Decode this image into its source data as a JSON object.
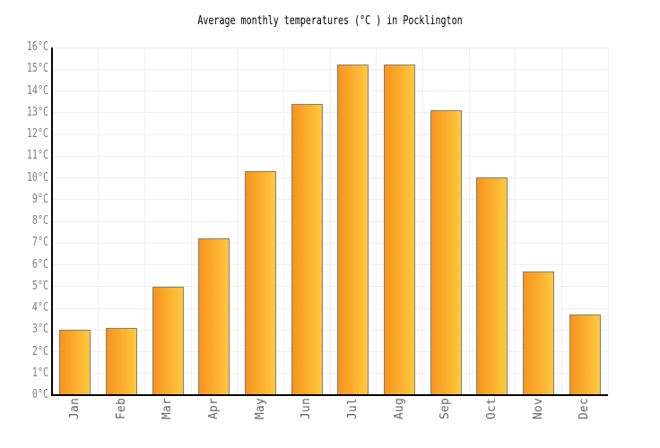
{
  "title": "Average monthly temperatures (°C ) in Pocklington",
  "chart_data": {
    "type": "bar",
    "title": "Average monthly temperatures (°C ) in Pocklington",
    "categories": [
      "Jan",
      "Feb",
      "Mar",
      "Apr",
      "May",
      "Jun",
      "Jul",
      "Aug",
      "Sep",
      "Oct",
      "Nov",
      "Dec"
    ],
    "values": [
      3.0,
      3.1,
      5.0,
      7.2,
      10.3,
      13.4,
      15.2,
      15.2,
      13.1,
      10.0,
      5.7,
      3.7
    ],
    "unit": "°C",
    "ylim": [
      0,
      16
    ],
    "ytick_step": 1,
    "ytick_labels": [
      "0°C",
      "1°C",
      "2°C",
      "3°C",
      "4°C",
      "5°C",
      "6°C",
      "7°C",
      "8°C",
      "9°C",
      "10°C",
      "11°C",
      "12°C",
      "13°C",
      "14°C",
      "15°C",
      "16°C"
    ],
    "grid": true,
    "legend": null,
    "colors": {
      "bar_gradient_left": "#f8931d",
      "bar_gradient_right": "#ffc93f",
      "bar_border": "#7f7f7f",
      "grid_line": "#efefef",
      "axis_line": "#000000",
      "y_label": "#7d7d7d",
      "x_label": "#666666",
      "title": "#000000",
      "background": "#ffffff"
    }
  }
}
